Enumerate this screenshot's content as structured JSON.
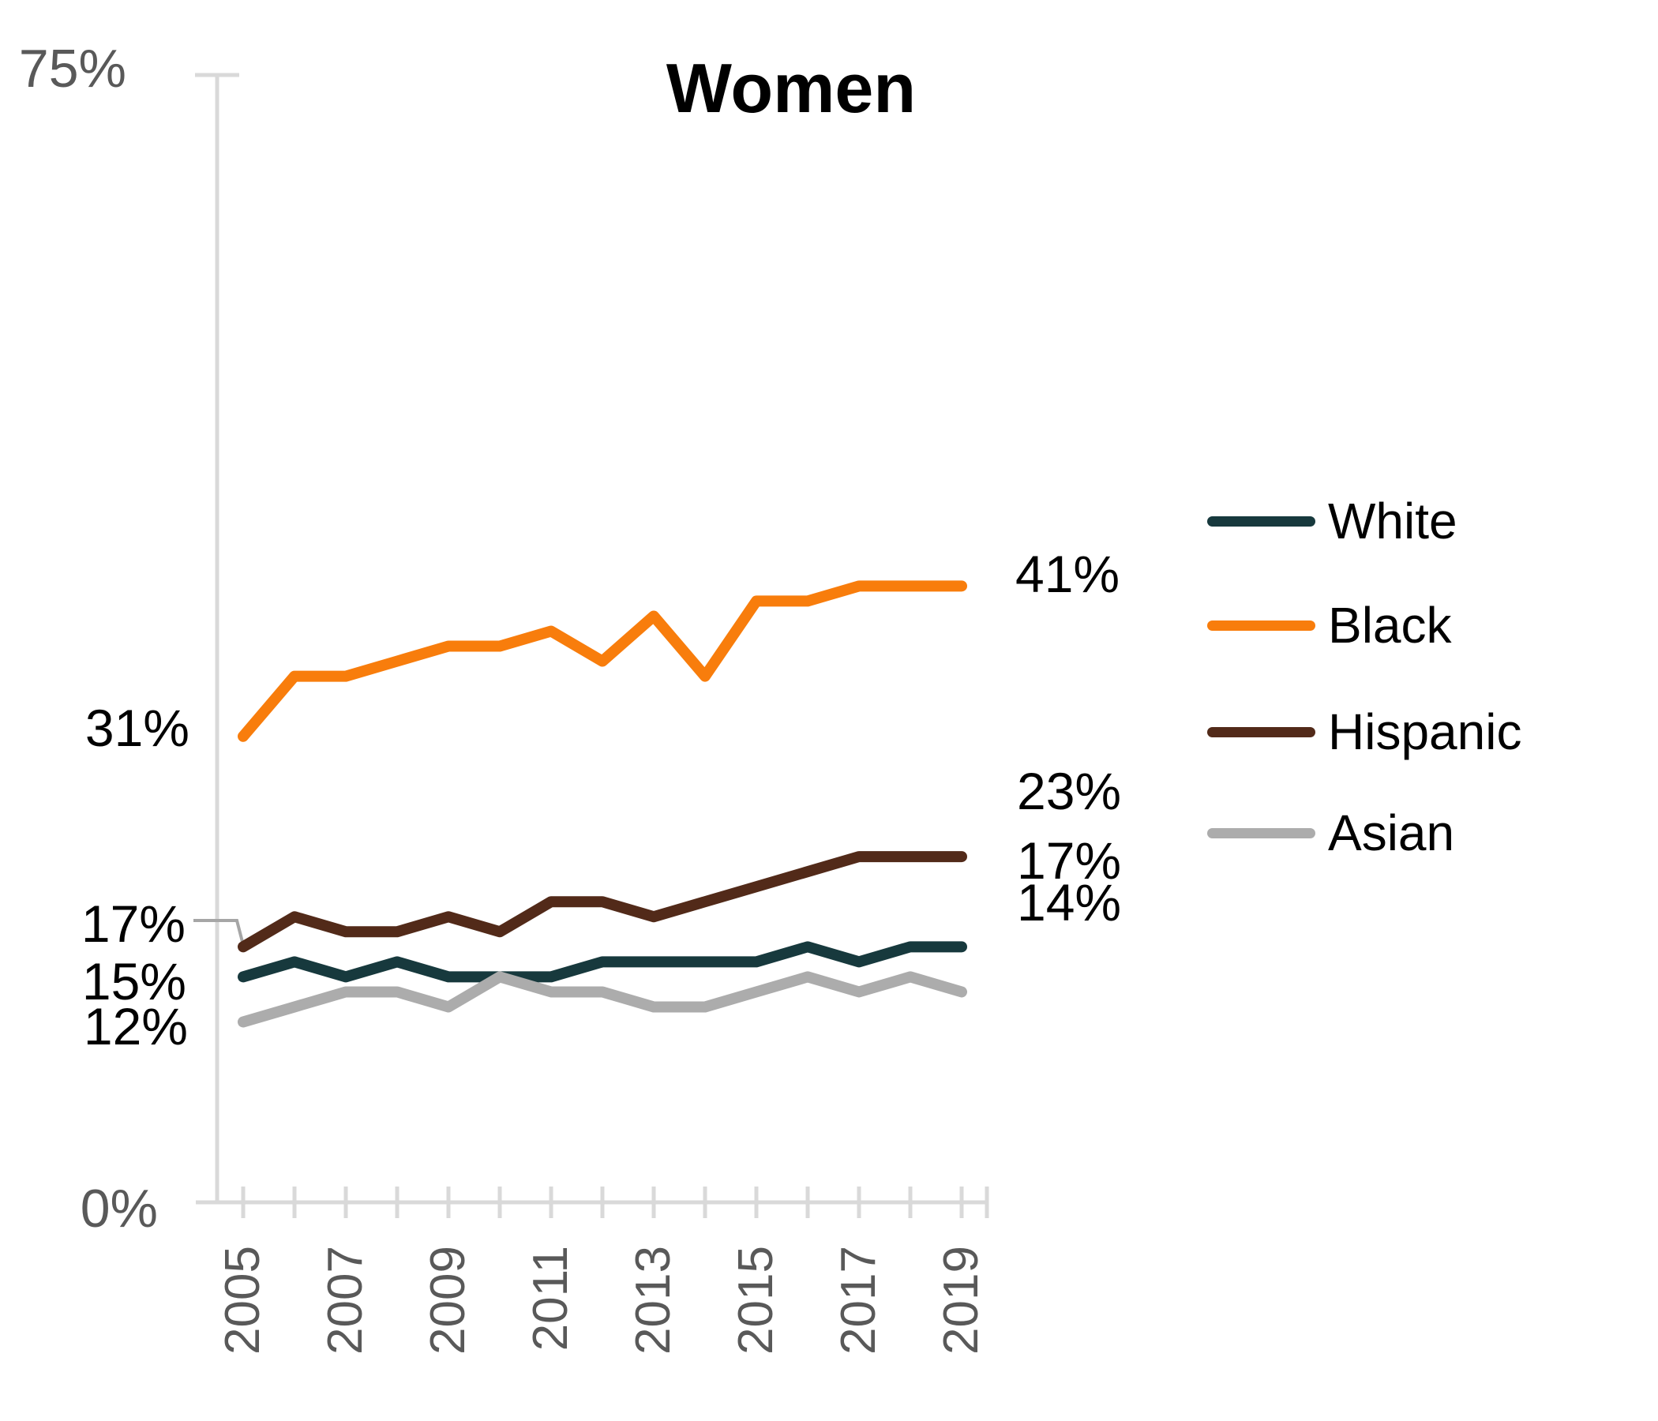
{
  "title": "Women",
  "legend": {
    "position": "right",
    "items": [
      {
        "label": "White"
      },
      {
        "label": "Black"
      },
      {
        "label": "Hispanic"
      },
      {
        "label": "Asian"
      }
    ]
  },
  "y_axis": {
    "max_label": "75%",
    "min_label": "0%"
  },
  "x_axis": {
    "labels": [
      "2005",
      "2007",
      "2009",
      "2011",
      "2013",
      "2015",
      "2017",
      "2019"
    ]
  },
  "data_labels": {
    "start": [
      {
        "series": "Black",
        "text": "31%"
      },
      {
        "series": "Hispanic",
        "text": "17%"
      },
      {
        "series": "White",
        "text": "15%"
      },
      {
        "series": "Asian",
        "text": "12%"
      }
    ],
    "end": [
      {
        "series": "Black",
        "text": "41%"
      },
      {
        "series": "Hispanic",
        "text": "23%"
      },
      {
        "series": "White",
        "text": "17%"
      },
      {
        "series": "Asian",
        "text": "14%"
      }
    ]
  },
  "colors": {
    "white_series": "#17393D",
    "black_series": "#F87D0C",
    "hispanic_series": "#522A19",
    "asian_series": "#ACACAC",
    "axis": "#D9D9D9",
    "axis_text": "#595959",
    "leader_line": "#A6A6A6",
    "label_text": "#000000"
  },
  "chart_data": {
    "type": "line",
    "title": "Women",
    "x": [
      2005,
      2006,
      2007,
      2008,
      2009,
      2010,
      2011,
      2012,
      2013,
      2014,
      2015,
      2016,
      2017,
      2018,
      2019
    ],
    "series": [
      {
        "name": "White",
        "color": "#17393D",
        "values": [
          15,
          16,
          15,
          16,
          15,
          15,
          15,
          16,
          16,
          16,
          16,
          17,
          16,
          17,
          17
        ]
      },
      {
        "name": "Black",
        "color": "#F87D0C",
        "values": [
          31,
          35,
          35,
          36,
          37,
          37,
          38,
          36,
          39,
          35,
          40,
          40,
          41,
          41,
          41
        ]
      },
      {
        "name": "Hispanic",
        "color": "#522A19",
        "values": [
          17,
          19,
          18,
          18,
          19,
          18,
          20,
          20,
          19,
          20,
          21,
          22,
          23,
          23,
          23
        ]
      },
      {
        "name": "Asian",
        "color": "#ACACAC",
        "values": [
          12,
          13,
          14,
          14,
          13,
          15,
          14,
          14,
          13,
          13,
          14,
          15,
          14,
          15,
          14
        ]
      }
    ],
    "ylim": [
      0,
      75
    ],
    "grid": false,
    "legend_position": "right",
    "x_tick_interval": 1,
    "x_label_interval": 2,
    "annotations": {
      "start_labels": [
        "31%",
        "17%",
        "15%",
        "12%"
      ],
      "end_labels": [
        "41%",
        "23%",
        "17%",
        "14%"
      ],
      "leader_line": "from 17% start label to Hispanic 2005 point"
    }
  }
}
